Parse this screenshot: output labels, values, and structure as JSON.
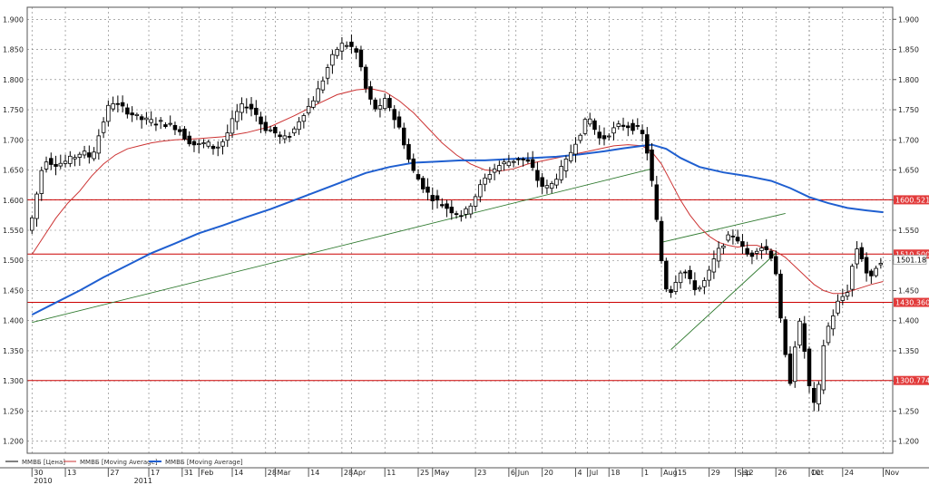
{
  "chart_data": {
    "type": "candlestick",
    "series_name": "ММВБ",
    "ylim": [
      1180,
      1920
    ],
    "y_ticks": [
      1200,
      1250,
      1300,
      1350,
      1400,
      1450,
      1500,
      1550,
      1600,
      1650,
      1700,
      1750,
      1800,
      1850,
      1900
    ],
    "y_tick_labels": [
      "1.200",
      "1.250",
      "1.300",
      "1.350",
      "1.400",
      "1.450",
      "1.500",
      "1.550",
      "1.600",
      "1.650",
      "1.700",
      "1.750",
      "1.800",
      "1.850",
      "1.900"
    ],
    "x_ticks": [
      {
        "day": 0,
        "label": "30"
      },
      {
        "day": 14,
        "label": "13"
      },
      {
        "day": 32,
        "label": "27"
      },
      {
        "day": 49,
        "label": "17"
      },
      {
        "day": 63,
        "label": "31"
      },
      {
        "day": 70,
        "label": "Feb"
      },
      {
        "day": 84,
        "label": "14"
      },
      {
        "day": 98,
        "label": "28"
      },
      {
        "day": 102,
        "label": "Mar"
      },
      {
        "day": 116,
        "label": "14"
      },
      {
        "day": 130,
        "label": "28"
      },
      {
        "day": 134,
        "label": "Apr"
      },
      {
        "day": 148,
        "label": "11"
      },
      {
        "day": 162,
        "label": "25"
      },
      {
        "day": 168,
        "label": "May"
      },
      {
        "day": 186,
        "label": "23"
      },
      {
        "day": 200,
        "label": "6"
      },
      {
        "day": 203,
        "label": "Jun"
      },
      {
        "day": 214,
        "label": "20"
      },
      {
        "day": 228,
        "label": "4"
      },
      {
        "day": 233,
        "label": "Jul"
      },
      {
        "day": 242,
        "label": "18"
      },
      {
        "day": 256,
        "label": "1"
      },
      {
        "day": 264,
        "label": "Aug"
      },
      {
        "day": 270,
        "label": "15"
      },
      {
        "day": 284,
        "label": "29"
      },
      {
        "day": 295,
        "label": "Sep"
      },
      {
        "day": 298,
        "label": "12"
      },
      {
        "day": 312,
        "label": "26"
      },
      {
        "day": 326,
        "label": "Oct"
      },
      {
        "day": 326,
        "label": "10"
      },
      {
        "day": 340,
        "label": "24"
      },
      {
        "day": 357,
        "label": "Nov"
      }
    ],
    "year_labels": [
      {
        "day": 0,
        "label": "2010"
      },
      {
        "day": 42,
        "label": "2011"
      }
    ],
    "x_range": [
      -2,
      361
    ],
    "price_path": [
      [
        0,
        1550
      ],
      [
        3,
        1610
      ],
      [
        6,
        1670
      ],
      [
        10,
        1660
      ],
      [
        14,
        1662
      ],
      [
        18,
        1670
      ],
      [
        22,
        1680
      ],
      [
        26,
        1670
      ],
      [
        30,
        1720
      ],
      [
        34,
        1765
      ],
      [
        38,
        1755
      ],
      [
        42,
        1745
      ],
      [
        46,
        1735
      ],
      [
        52,
        1730
      ],
      [
        56,
        1728
      ],
      [
        62,
        1720
      ],
      [
        66,
        1700
      ],
      [
        70,
        1690
      ],
      [
        74,
        1695
      ],
      [
        78,
        1685
      ],
      [
        82,
        1702
      ],
      [
        86,
        1740
      ],
      [
        90,
        1760
      ],
      [
        94,
        1750
      ],
      [
        98,
        1720
      ],
      [
        102,
        1715
      ],
      [
        106,
        1700
      ],
      [
        110,
        1710
      ],
      [
        114,
        1740
      ],
      [
        118,
        1760
      ],
      [
        122,
        1790
      ],
      [
        126,
        1830
      ],
      [
        130,
        1858
      ],
      [
        134,
        1858
      ],
      [
        138,
        1840
      ],
      [
        140,
        1800
      ],
      [
        142,
        1770
      ],
      [
        144,
        1760
      ],
      [
        146,
        1745
      ],
      [
        148,
        1760
      ],
      [
        150,
        1770
      ],
      [
        152,
        1740
      ],
      [
        154,
        1730
      ],
      [
        156,
        1710
      ],
      [
        158,
        1680
      ],
      [
        160,
        1655
      ],
      [
        162,
        1640
      ],
      [
        164,
        1630
      ],
      [
        166,
        1615
      ],
      [
        170,
        1600
      ],
      [
        174,
        1590
      ],
      [
        178,
        1580
      ],
      [
        182,
        1575
      ],
      [
        186,
        1600
      ],
      [
        190,
        1630
      ],
      [
        194,
        1650
      ],
      [
        198,
        1660
      ],
      [
        202,
        1665
      ],
      [
        206,
        1670
      ],
      [
        210,
        1660
      ],
      [
        214,
        1625
      ],
      [
        218,
        1620
      ],
      [
        222,
        1645
      ],
      [
        226,
        1670
      ],
      [
        228,
        1690
      ],
      [
        232,
        1720
      ],
      [
        234,
        1738
      ],
      [
        236,
        1730
      ],
      [
        238,
        1705
      ],
      [
        240,
        1700
      ],
      [
        244,
        1715
      ],
      [
        248,
        1725
      ],
      [
        252,
        1722
      ],
      [
        256,
        1716
      ],
      [
        258,
        1700
      ],
      [
        260,
        1660
      ],
      [
        262,
        1600
      ],
      [
        264,
        1530
      ],
      [
        266,
        1470
      ],
      [
        268,
        1440
      ],
      [
        270,
        1460
      ],
      [
        274,
        1490
      ],
      [
        276,
        1470
      ],
      [
        280,
        1450
      ],
      [
        284,
        1470
      ],
      [
        288,
        1510
      ],
      [
        292,
        1535
      ],
      [
        296,
        1545
      ],
      [
        298,
        1525
      ],
      [
        302,
        1505
      ],
      [
        306,
        1525
      ],
      [
        310,
        1515
      ],
      [
        312,
        1500
      ],
      [
        314,
        1460
      ],
      [
        315,
        1400
      ],
      [
        317,
        1340
      ],
      [
        319,
        1300
      ],
      [
        321,
        1360
      ],
      [
        323,
        1395
      ],
      [
        325,
        1350
      ],
      [
        327,
        1290
      ],
      [
        329,
        1260
      ],
      [
        331,
        1290
      ],
      [
        333,
        1360
      ],
      [
        335,
        1390
      ],
      [
        337,
        1410
      ],
      [
        339,
        1430
      ],
      [
        341,
        1440
      ],
      [
        343,
        1450
      ],
      [
        345,
        1490
      ],
      [
        347,
        1520
      ],
      [
        349,
        1505
      ],
      [
        351,
        1480
      ],
      [
        353,
        1470
      ],
      [
        355,
        1490
      ],
      [
        357,
        1500
      ]
    ],
    "ma_short": [
      [
        0,
        1510
      ],
      [
        5,
        1540
      ],
      [
        10,
        1570
      ],
      [
        15,
        1595
      ],
      [
        20,
        1615
      ],
      [
        25,
        1640
      ],
      [
        30,
        1660
      ],
      [
        35,
        1675
      ],
      [
        40,
        1685
      ],
      [
        45,
        1690
      ],
      [
        50,
        1695
      ],
      [
        55,
        1698
      ],
      [
        60,
        1700
      ],
      [
        70,
        1702
      ],
      [
        80,
        1705
      ],
      [
        90,
        1712
      ],
      [
        100,
        1722
      ],
      [
        110,
        1740
      ],
      [
        120,
        1760
      ],
      [
        128,
        1775
      ],
      [
        136,
        1783
      ],
      [
        142,
        1785
      ],
      [
        148,
        1780
      ],
      [
        154,
        1765
      ],
      [
        160,
        1745
      ],
      [
        166,
        1720
      ],
      [
        172,
        1695
      ],
      [
        178,
        1675
      ],
      [
        184,
        1660
      ],
      [
        190,
        1650
      ],
      [
        196,
        1648
      ],
      [
        202,
        1652
      ],
      [
        208,
        1660
      ],
      [
        214,
        1665
      ],
      [
        220,
        1670
      ],
      [
        226,
        1675
      ],
      [
        232,
        1680
      ],
      [
        238,
        1685
      ],
      [
        244,
        1690
      ],
      [
        250,
        1692
      ],
      [
        256,
        1690
      ],
      [
        260,
        1680
      ],
      [
        264,
        1660
      ],
      [
        268,
        1630
      ],
      [
        272,
        1600
      ],
      [
        276,
        1575
      ],
      [
        280,
        1555
      ],
      [
        284,
        1540
      ],
      [
        288,
        1530
      ],
      [
        292,
        1525
      ],
      [
        296,
        1522
      ],
      [
        300,
        1525
      ],
      [
        304,
        1525
      ],
      [
        308,
        1520
      ],
      [
        312,
        1515
      ],
      [
        316,
        1505
      ],
      [
        320,
        1490
      ],
      [
        324,
        1475
      ],
      [
        328,
        1460
      ],
      [
        332,
        1450
      ],
      [
        336,
        1445
      ],
      [
        340,
        1445
      ],
      [
        344,
        1450
      ],
      [
        348,
        1455
      ],
      [
        352,
        1460
      ],
      [
        357,
        1465
      ]
    ],
    "ma_long": [
      [
        0,
        1410
      ],
      [
        10,
        1430
      ],
      [
        20,
        1450
      ],
      [
        30,
        1472
      ],
      [
        40,
        1492
      ],
      [
        50,
        1512
      ],
      [
        60,
        1528
      ],
      [
        70,
        1545
      ],
      [
        80,
        1558
      ],
      [
        90,
        1572
      ],
      [
        100,
        1585
      ],
      [
        110,
        1600
      ],
      [
        120,
        1615
      ],
      [
        130,
        1630
      ],
      [
        140,
        1645
      ],
      [
        150,
        1655
      ],
      [
        160,
        1662
      ],
      [
        170,
        1664
      ],
      [
        180,
        1666
      ],
      [
        190,
        1666
      ],
      [
        200,
        1668
      ],
      [
        210,
        1670
      ],
      [
        220,
        1672
      ],
      [
        230,
        1676
      ],
      [
        240,
        1681
      ],
      [
        248,
        1686
      ],
      [
        256,
        1690
      ],
      [
        260,
        1692
      ],
      [
        266,
        1685
      ],
      [
        272,
        1670
      ],
      [
        280,
        1655
      ],
      [
        290,
        1646
      ],
      [
        300,
        1640
      ],
      [
        310,
        1632
      ],
      [
        318,
        1620
      ],
      [
        326,
        1605
      ],
      [
        334,
        1595
      ],
      [
        342,
        1587
      ],
      [
        350,
        1583
      ],
      [
        357,
        1580
      ]
    ],
    "horizontal_levels": [
      {
        "value": 1600.5212,
        "label": "1600.5212"
      },
      {
        "value": 1510.5004,
        "label": "1510.5004"
      },
      {
        "value": 1430.3608,
        "label": "1430.3608"
      },
      {
        "value": 1300.7748,
        "label": "1300.7748"
      }
    ],
    "last_price_label": "1501.18",
    "trend_lines": [
      {
        "x1": 0,
        "y1": 1397,
        "x2": 260,
        "y2": 1652
      },
      {
        "x1": 264,
        "y1": 1530,
        "x2": 316,
        "y2": 1578
      },
      {
        "x1": 268,
        "y1": 1352,
        "x2": 312,
        "y2": 1512
      }
    ],
    "legend": [
      {
        "name": "ММВБ [Цена]",
        "color": "#000000"
      },
      {
        "name": "ММВБ [Moving Average]",
        "color": "#cc3333"
      },
      {
        "name": "ММВБ [Moving Average]",
        "color": "#1f5fd0"
      }
    ],
    "grid": true,
    "colors": {
      "up": "#ffffff",
      "down": "#000000",
      "ma_short": "#cc3333",
      "ma_long": "#1f5fd0",
      "levels": "#cc0000",
      "trend": "#2f7a2f",
      "grid": "#777777"
    }
  }
}
